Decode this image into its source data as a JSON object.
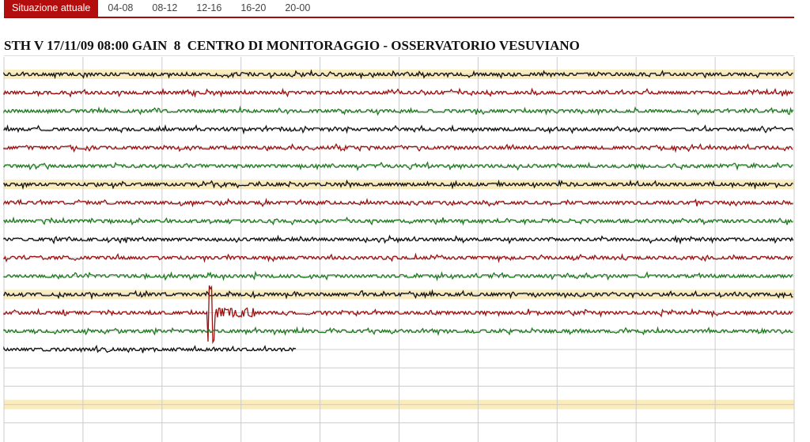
{
  "tabs": [
    {
      "label": "Situazione attuale",
      "active": true
    },
    {
      "label": "04-08"
    },
    {
      "label": "08-12"
    },
    {
      "label": "12-16"
    },
    {
      "label": "16-20"
    },
    {
      "label": "20-00"
    }
  ],
  "title": "STH V 17/11/09 08:00 GAIN  8  CENTRO DI MONITORAGGIO - OSSERVATORIO VESUVIANO",
  "colors": {
    "black": "#111111",
    "red": "#9b1010",
    "green": "#1f7a1f",
    "highlight": "#fbecbe",
    "grid": "#cccccc",
    "accent": "#b30d0d"
  },
  "seismogram": {
    "rows": 20,
    "hour_divisions": 10,
    "highlight_every": 6,
    "trace_colors": [
      "black",
      "red",
      "green"
    ],
    "traces_recorded": 16,
    "last_trace_progress": 0.37,
    "event": {
      "row": 13,
      "position": 0.258
    }
  }
}
